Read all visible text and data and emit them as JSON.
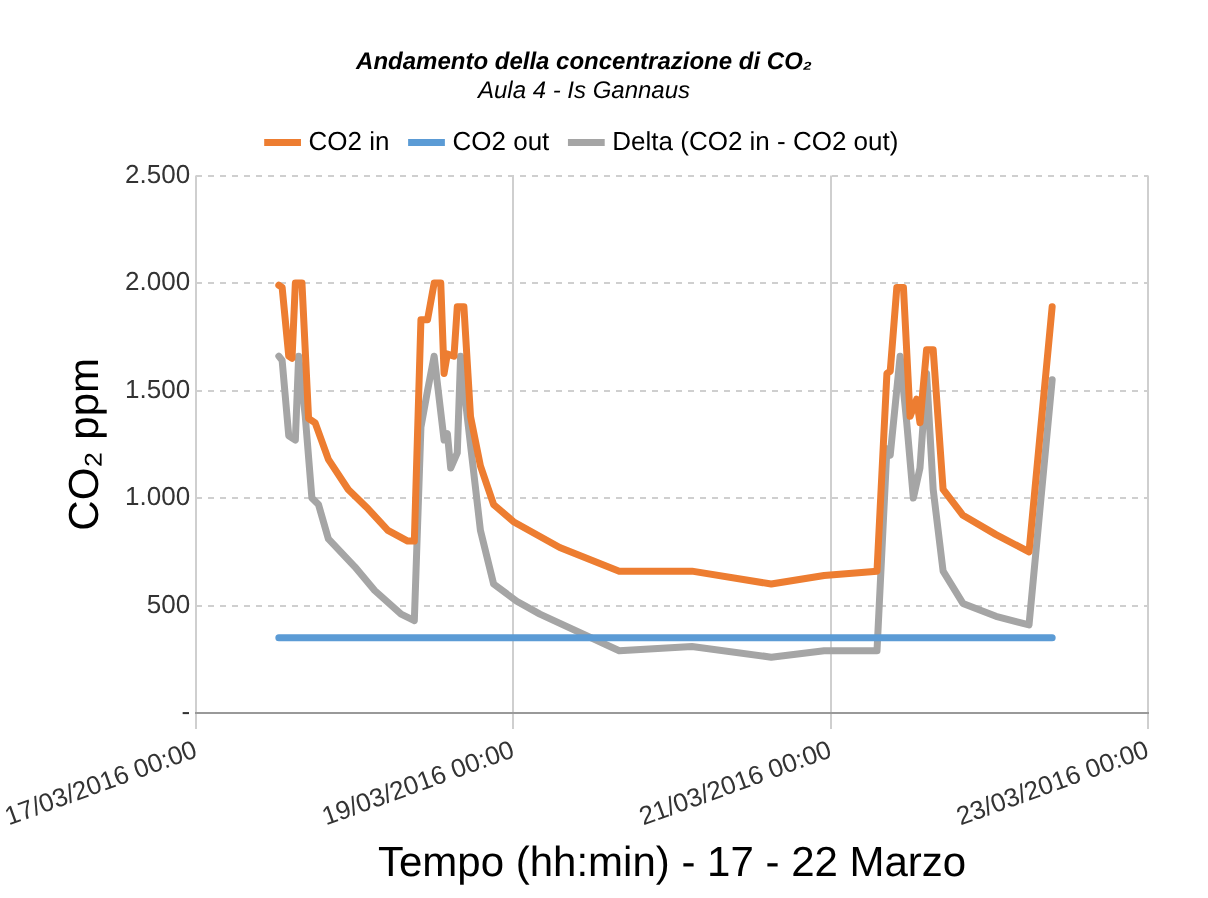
{
  "chart_data": {
    "type": "line",
    "title": "Andamento della concentrazione di CO₂",
    "subtitle": "Aula 4 - Is Gannaus",
    "xlabel": "Tempo (hh:min) - 17 - 22 Marzo",
    "ylabel": "CO₂ ppm",
    "xlim": [
      "2016-03-17",
      "2016-03-23"
    ],
    "xticks": [
      {
        "value": "2016-03-17",
        "label": "17/03/2016 00:00"
      },
      {
        "value": "2016-03-19",
        "label": "19/03/2016 00:00"
      },
      {
        "value": "2016-03-21",
        "label": "21/03/2016 00:00"
      },
      {
        "value": "2016-03-23",
        "label": "23/03/2016 00:00"
      }
    ],
    "ylim": [
      0,
      2500
    ],
    "yticks": [
      {
        "value": 0,
        "label": "-"
      },
      {
        "value": 500,
        "label": "500"
      },
      {
        "value": 1000,
        "label": "1.000"
      },
      {
        "value": 1500,
        "label": "1.500"
      },
      {
        "value": 2000,
        "label": "2.000"
      },
      {
        "value": 2500,
        "label": "2.500"
      }
    ],
    "grid": true,
    "legend": "top",
    "marker": "none",
    "line_style": "solid",
    "series": [
      {
        "name": "CO2 in",
        "color": "#ed7d31",
        "x": [
          "2016-03-17T12:30",
          "2016-03-17T13:00",
          "2016-03-17T14:00",
          "2016-03-17T14:30",
          "2016-03-17T15:00",
          "2016-03-17T16:00",
          "2016-03-17T17:00",
          "2016-03-17T18:00",
          "2016-03-17T20:00",
          "2016-03-17T23:00",
          "2016-03-18T02:00",
          "2016-03-18T05:00",
          "2016-03-18T08:00",
          "2016-03-18T09:00",
          "2016-03-18T10:00",
          "2016-03-18T11:00",
          "2016-03-18T12:00",
          "2016-03-18T13:00",
          "2016-03-18T13:30",
          "2016-03-18T14:00",
          "2016-03-18T15:00",
          "2016-03-18T15:30",
          "2016-03-18T16:30",
          "2016-03-18T17:30",
          "2016-03-18T19:00",
          "2016-03-18T21:00",
          "2016-03-19T00:00",
          "2016-03-19T07:00",
          "2016-03-19T16:00",
          "2016-03-20T03:00",
          "2016-03-20T15:00",
          "2016-03-20T23:00",
          "2016-03-21T07:00",
          "2016-03-21T08:30",
          "2016-03-21T09:00",
          "2016-03-21T10:00",
          "2016-03-21T11:00",
          "2016-03-21T12:00",
          "2016-03-21T13:00",
          "2016-03-21T13:30",
          "2016-03-21T14:30",
          "2016-03-21T15:30",
          "2016-03-21T17:00",
          "2016-03-21T20:00",
          "2016-03-22T01:00",
          "2016-03-22T06:00",
          "2016-03-22T09:30"
        ],
        "values": [
          1990,
          1980,
          1660,
          1650,
          2000,
          2000,
          1370,
          1350,
          1180,
          1040,
          950,
          850,
          800,
          800,
          1830,
          1830,
          2000,
          2000,
          1580,
          1670,
          1660,
          1890,
          1890,
          1380,
          1150,
          970,
          890,
          770,
          660,
          660,
          600,
          640,
          660,
          1580,
          1590,
          1980,
          1980,
          1380,
          1460,
          1350,
          1690,
          1690,
          1040,
          920,
          830,
          750,
          1890
        ]
      },
      {
        "name": "CO2 out",
        "color": "#5b9bd5",
        "x": [
          "2016-03-17T12:30",
          "2016-03-22T09:30"
        ],
        "values": [
          350,
          350
        ]
      },
      {
        "name": "Delta (CO2 in - CO2 out)",
        "color": "#a5a5a5",
        "x": [
          "2016-03-17T12:30",
          "2016-03-17T13:00",
          "2016-03-17T14:00",
          "2016-03-17T15:00",
          "2016-03-17T15:30",
          "2016-03-17T16:30",
          "2016-03-17T17:30",
          "2016-03-17T18:30",
          "2016-03-17T20:00",
          "2016-03-18T00:00",
          "2016-03-18T03:00",
          "2016-03-18T07:00",
          "2016-03-18T09:00",
          "2016-03-18T10:00",
          "2016-03-18T11:00",
          "2016-03-18T12:00",
          "2016-03-18T13:30",
          "2016-03-18T14:00",
          "2016-03-18T14:30",
          "2016-03-18T15:30",
          "2016-03-18T16:00",
          "2016-03-18T17:00",
          "2016-03-18T19:00",
          "2016-03-18T21:00",
          "2016-03-19T00:30",
          "2016-03-19T04:00",
          "2016-03-19T16:00",
          "2016-03-20T03:00",
          "2016-03-20T15:00",
          "2016-03-20T23:00",
          "2016-03-21T07:00",
          "2016-03-21T08:30",
          "2016-03-21T09:00",
          "2016-03-21T10:30",
          "2016-03-21T11:30",
          "2016-03-21T12:30",
          "2016-03-21T13:30",
          "2016-03-21T14:30",
          "2016-03-21T15:30",
          "2016-03-21T17:00",
          "2016-03-21T20:00",
          "2016-03-22T01:00",
          "2016-03-22T06:00",
          "2016-03-22T09:30"
        ],
        "values": [
          1660,
          1640,
          1290,
          1270,
          1660,
          1380,
          1000,
          970,
          810,
          680,
          570,
          460,
          430,
          1330,
          1500,
          1660,
          1270,
          1300,
          1140,
          1210,
          1660,
          1380,
          850,
          600,
          520,
          460,
          290,
          310,
          260,
          290,
          290,
          1230,
          1200,
          1660,
          1350,
          1000,
          1140,
          1580,
          1040,
          660,
          510,
          450,
          410,
          1550
        ]
      }
    ]
  }
}
